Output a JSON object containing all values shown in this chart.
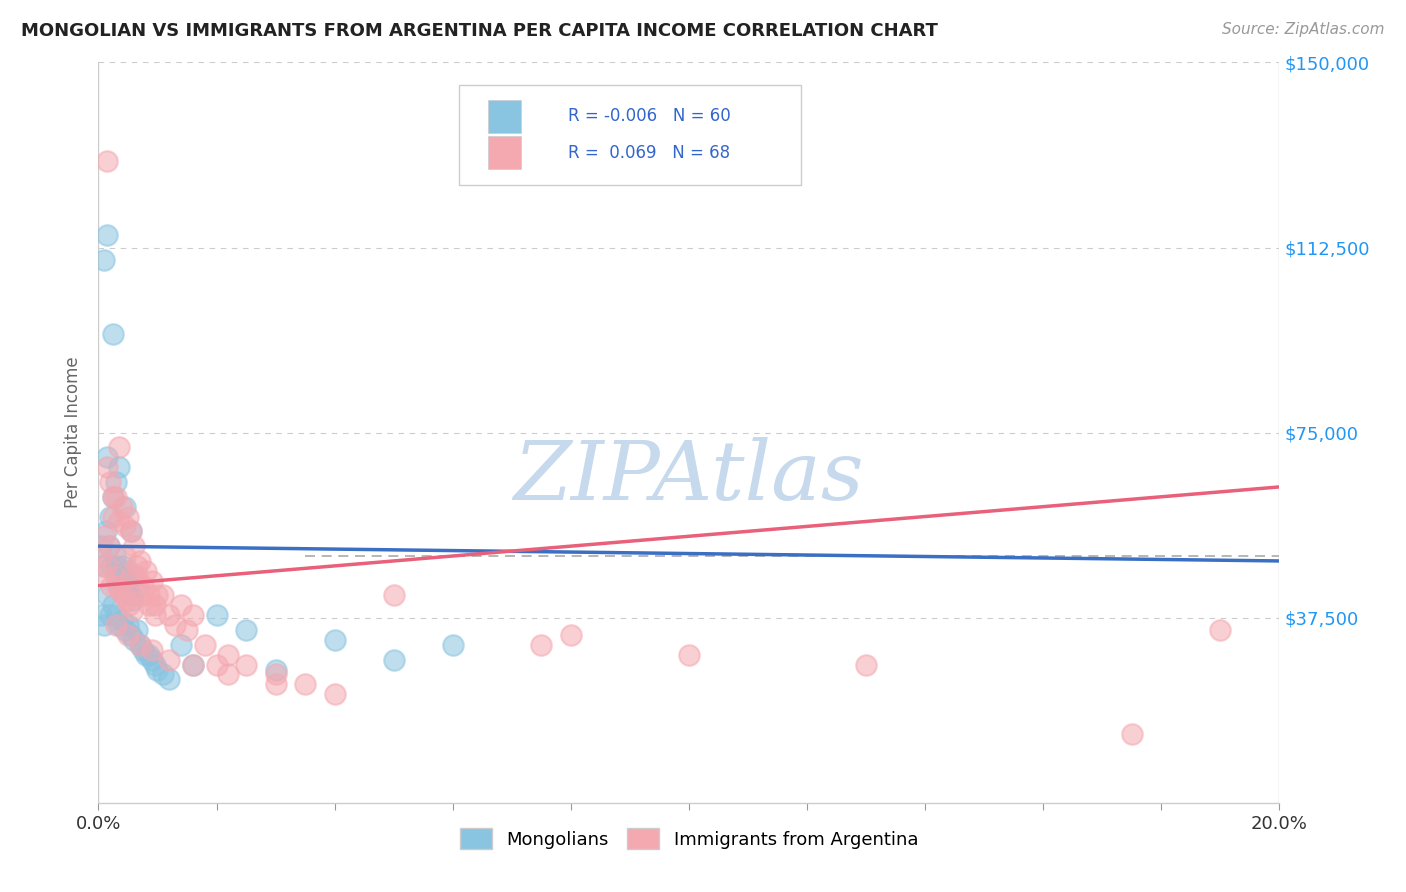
{
  "title": "MONGOLIAN VS IMMIGRANTS FROM ARGENTINA PER CAPITA INCOME CORRELATION CHART",
  "source": "Source: ZipAtlas.com",
  "ylabel": "Per Capita Income",
  "yticks": [
    0,
    37500,
    75000,
    112500,
    150000
  ],
  "ytick_labels": [
    "",
    "$37,500",
    "$75,000",
    "$112,500",
    "$150,000"
  ],
  "xticks": [
    0.0,
    2.0,
    4.0,
    6.0,
    8.0,
    10.0,
    12.0,
    14.0,
    16.0,
    18.0,
    20.0
  ],
  "xmin": 0.0,
  "xmax": 20.0,
  "ymin": 0,
  "ymax": 150000,
  "blue_color": "#89c4e1",
  "pink_color": "#f4a8b0",
  "blue_line_color": "#3a6fc4",
  "pink_line_color": "#e8607a",
  "legend_text_color": "#3366cc",
  "r_blue": -0.006,
  "n_blue": 60,
  "r_pink": 0.069,
  "n_pink": 68,
  "watermark": "ZIPAtlas",
  "watermark_color_r": 0.78,
  "watermark_color_g": 0.85,
  "watermark_color_b": 0.93,
  "legend_label_blue": "Mongolians",
  "legend_label_pink": "Immigrants from Argentina",
  "blue_scatter_x": [
    0.05,
    0.08,
    0.1,
    0.12,
    0.15,
    0.15,
    0.18,
    0.2,
    0.22,
    0.25,
    0.25,
    0.28,
    0.3,
    0.3,
    0.32,
    0.35,
    0.35,
    0.38,
    0.4,
    0.42,
    0.45,
    0.45,
    0.48,
    0.5,
    0.52,
    0.55,
    0.55,
    0.58,
    0.6,
    0.65,
    0.05,
    0.1,
    0.15,
    0.2,
    0.25,
    0.3,
    0.35,
    0.4,
    0.45,
    0.5,
    0.55,
    0.6,
    0.65,
    0.7,
    0.75,
    0.8,
    0.85,
    0.9,
    0.95,
    1.0,
    1.1,
    1.2,
    1.4,
    1.6,
    2.0,
    2.5,
    3.0,
    4.0,
    5.0,
    6.0
  ],
  "blue_scatter_y": [
    52000,
    48000,
    110000,
    55000,
    115000,
    70000,
    52000,
    58000,
    48000,
    95000,
    62000,
    50000,
    48000,
    65000,
    46000,
    44000,
    68000,
    46000,
    45000,
    48000,
    44000,
    60000,
    43000,
    45000,
    47000,
    42000,
    55000,
    41000,
    46000,
    44000,
    38000,
    36000,
    42000,
    38000,
    40000,
    38000,
    36000,
    37000,
    35000,
    36000,
    34000,
    33000,
    35000,
    32000,
    31000,
    30000,
    30000,
    29000,
    28000,
    27000,
    26000,
    25000,
    32000,
    28000,
    38000,
    35000,
    27000,
    33000,
    29000,
    32000
  ],
  "pink_scatter_x": [
    0.05,
    0.08,
    0.1,
    0.12,
    0.15,
    0.18,
    0.2,
    0.22,
    0.25,
    0.28,
    0.3,
    0.32,
    0.35,
    0.38,
    0.4,
    0.42,
    0.45,
    0.48,
    0.5,
    0.52,
    0.55,
    0.58,
    0.6,
    0.65,
    0.7,
    0.75,
    0.8,
    0.85,
    0.9,
    0.95,
    1.0,
    1.1,
    1.2,
    1.3,
    1.4,
    1.5,
    1.6,
    1.8,
    2.0,
    2.2,
    2.5,
    3.0,
    3.5,
    4.0,
    0.15,
    0.25,
    0.35,
    0.45,
    0.55,
    0.65,
    0.75,
    0.85,
    0.95,
    5.0,
    7.5,
    8.0,
    10.0,
    13.0,
    17.5,
    19.0,
    0.3,
    0.5,
    0.7,
    0.9,
    1.2,
    1.6,
    2.2,
    3.0
  ],
  "pink_scatter_y": [
    50000,
    46000,
    54000,
    48000,
    130000,
    52000,
    65000,
    44000,
    58000,
    46000,
    62000,
    44000,
    72000,
    43000,
    60000,
    42000,
    56000,
    41000,
    58000,
    40000,
    55000,
    39000,
    52000,
    46000,
    49000,
    44000,
    47000,
    42000,
    45000,
    40000,
    42000,
    42000,
    38000,
    36000,
    40000,
    35000,
    38000,
    32000,
    28000,
    30000,
    28000,
    26000,
    24000,
    22000,
    68000,
    62000,
    57000,
    50000,
    46000,
    48000,
    42000,
    40000,
    38000,
    42000,
    32000,
    34000,
    30000,
    28000,
    14000,
    35000,
    36000,
    34000,
    32000,
    31000,
    29000,
    28000,
    26000,
    24000
  ],
  "blue_trend_x": [
    0.0,
    20.0
  ],
  "blue_trend_y": [
    52000,
    49000
  ],
  "pink_trend_x": [
    0.0,
    20.0
  ],
  "pink_trend_y": [
    44000,
    64000
  ],
  "dashed_line_y": 50000,
  "dashed_x_start": 3.5,
  "dashed_x_end": 20.0
}
